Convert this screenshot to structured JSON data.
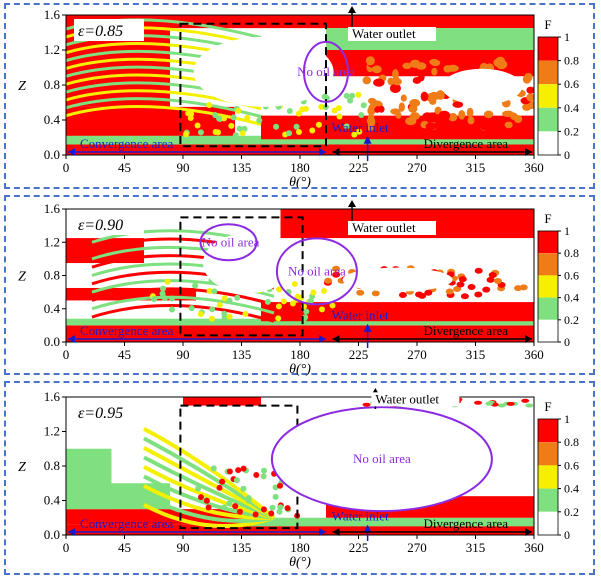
{
  "chart_data": [
    {
      "type": "heatmap",
      "title": "ε=0.85",
      "xlabel": "θ(°)",
      "ylabel": "Z",
      "xlim": [
        0,
        360
      ],
      "ylim": [
        0,
        1.6
      ],
      "xticks": [
        "0",
        "45",
        "90",
        "135",
        "180",
        "225",
        "270",
        "315",
        "360"
      ],
      "yticks": [
        "0.0",
        "0.4",
        "0.8",
        "1.2",
        "1.6"
      ],
      "colorbar": {
        "label": "F",
        "ticks": [
          "0",
          "0.2",
          "0.4",
          "0.6",
          "0.8",
          "1"
        ]
      },
      "annotations": {
        "water_outlet": "Water outlet",
        "water_inlet": "Water inlet",
        "no_oil": [
          "No oil area"
        ],
        "convergence": "Convergence area",
        "divergence": "Divergence area"
      }
    },
    {
      "type": "heatmap",
      "title": "ε=0.90",
      "xlabel": "θ(°)",
      "ylabel": "Z",
      "xlim": [
        0,
        360
      ],
      "ylim": [
        0,
        1.6
      ],
      "xticks": [
        "0",
        "45",
        "90",
        "135",
        "180",
        "225",
        "270",
        "315",
        "360"
      ],
      "yticks": [
        "0.0",
        "0.4",
        "0.8",
        "1.2",
        "1.6"
      ],
      "colorbar": {
        "label": "F",
        "ticks": [
          "0",
          "0.2",
          "0.4",
          "0.6",
          "0.8",
          "1"
        ]
      },
      "annotations": {
        "water_outlet": "Water outlet",
        "water_inlet": "Water inlet",
        "no_oil": [
          "No oil area",
          "No oil area"
        ],
        "convergence": "Convergence area",
        "divergence": "Divergence area"
      }
    },
    {
      "type": "heatmap",
      "title": "ε=0.95",
      "xlabel": "θ(°)",
      "ylabel": "Z",
      "xlim": [
        0,
        360
      ],
      "ylim": [
        0,
        1.6
      ],
      "xticks": [
        "0",
        "45",
        "90",
        "135",
        "180",
        "225",
        "270",
        "315",
        "360"
      ],
      "yticks": [
        "0.0",
        "0.4",
        "0.8",
        "1.2",
        "1.6"
      ],
      "colorbar": {
        "label": "F",
        "ticks": [
          "0",
          "0.2",
          "0.4",
          "0.6",
          "0.8",
          "1"
        ]
      },
      "annotations": {
        "water_outlet": "Water outlet",
        "water_inlet": "Water inlet",
        "no_oil": [
          "No oil area"
        ],
        "convergence": "Convergence area",
        "divergence": "Divergence area"
      }
    }
  ],
  "colors": {
    "scale": [
      "#ffffff",
      "#7fe07f",
      "#f4f000",
      "#f7a52a",
      "#f07c18",
      "#ff0000"
    ],
    "panel_border": "#4a74c9",
    "annotation_blue": "#1a1acd",
    "annotation_purple": "#8d2be2"
  }
}
